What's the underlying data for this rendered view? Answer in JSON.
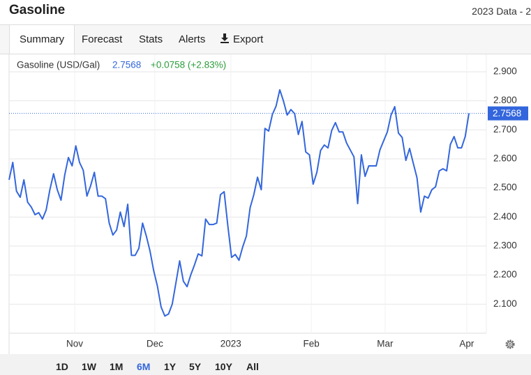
{
  "header": {
    "title": "Gasoline",
    "edition": "2023 Data - 2"
  },
  "tabs": [
    "Summary",
    "Forecast",
    "Stats",
    "Alerts",
    "Export"
  ],
  "ranges": [
    "1D",
    "1W",
    "1M",
    "6M",
    "1Y",
    "5Y",
    "10Y",
    "All"
  ],
  "selected_range": "6M",
  "chart_data": {
    "type": "line",
    "change": "+0.0758 (+2.83%)",
    "series": [
      {
        "name": "Gasoline (USD/Gal)",
        "color": "#3366dd",
        "values": [
          2.528,
          2.588,
          2.489,
          2.468,
          2.528,
          2.451,
          2.434,
          2.408,
          2.415,
          2.393,
          2.424,
          2.494,
          2.549,
          2.494,
          2.458,
          2.544,
          2.605,
          2.576,
          2.645,
          2.588,
          2.561,
          2.472,
          2.508,
          2.554,
          2.472,
          2.472,
          2.463,
          2.379,
          2.338,
          2.355,
          2.417,
          2.367,
          2.444,
          2.268,
          2.268,
          2.292,
          2.379,
          2.335,
          2.283,
          2.215,
          2.162,
          2.09,
          2.059,
          2.066,
          2.1,
          2.174,
          2.249,
          2.179,
          2.16,
          2.201,
          2.235,
          2.273,
          2.266,
          2.393,
          2.374,
          2.374,
          2.379,
          2.477,
          2.487,
          2.369,
          2.261,
          2.271,
          2.251,
          2.297,
          2.335,
          2.432,
          2.477,
          2.537,
          2.494,
          2.705,
          2.696,
          2.753,
          2.782,
          2.838,
          2.799,
          2.751,
          2.77,
          2.756,
          2.684,
          2.729,
          2.624,
          2.614,
          2.513,
          2.554,
          2.629,
          2.648,
          2.638,
          2.698,
          2.725,
          2.693,
          2.693,
          2.655,
          2.631,
          2.607,
          2.446,
          2.614,
          2.54,
          2.576,
          2.576,
          2.576,
          2.631,
          2.662,
          2.693,
          2.751,
          2.78,
          2.689,
          2.674,
          2.595,
          2.636,
          2.585,
          2.535,
          2.417,
          2.472,
          2.465,
          2.494,
          2.504,
          2.559,
          2.566,
          2.559,
          2.65,
          2.677,
          2.638,
          2.638,
          2.677,
          2.7568
        ]
      }
    ],
    "xlim": [
      0,
      128.7
    ],
    "xticks": [
      {
        "value": 17.7,
        "label": "Nov"
      },
      {
        "value": 39.3,
        "label": "Dec"
      },
      {
        "value": 59.8,
        "label": "2023"
      },
      {
        "value": 81.5,
        "label": "Feb"
      },
      {
        "value": 101.4,
        "label": "Mar"
      },
      {
        "value": 123.4,
        "label": "Apr"
      }
    ],
    "ylim": [
      2.0,
      2.96
    ],
    "yticks": [
      {
        "value": 2.1,
        "label": "2.100"
      },
      {
        "value": 2.2,
        "label": "2.200"
      },
      {
        "value": 2.3,
        "label": "2.300"
      },
      {
        "value": 2.4,
        "label": "2.400"
      },
      {
        "value": 2.5,
        "label": "2.500"
      },
      {
        "value": 2.6,
        "label": "2.600"
      },
      {
        "value": 2.7,
        "label": "2.700"
      },
      {
        "value": 2.8,
        "label": "2.800"
      },
      {
        "value": 2.9,
        "label": "2.900"
      }
    ],
    "grid": true
  }
}
